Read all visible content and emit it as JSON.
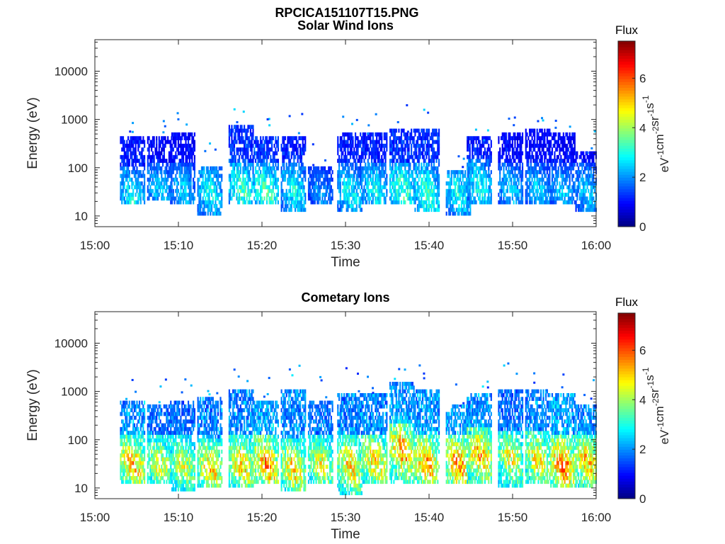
{
  "figure": {
    "title": "RPCICA151107T15.PNG"
  },
  "chart_data": [
    {
      "type": "heatmap",
      "title": "Solar Wind Ions",
      "xlabel": "Time",
      "ylabel": "Energy (eV)",
      "x_ticks": [
        "15:00",
        "15:10",
        "15:20",
        "15:30",
        "15:40",
        "15:50",
        "16:00"
      ],
      "xlim": [
        "15:00",
        "16:00"
      ],
      "y_scale": "log",
      "y_ticks": [
        "10",
        "100",
        "1000",
        "10000"
      ],
      "ylim": [
        6,
        45000
      ],
      "colorbar": {
        "title": "Flux",
        "label": "eV-1cm-2sr-1s-1",
        "ticks": [
          "0",
          "2",
          "4",
          "6"
        ],
        "range": [
          0,
          7.5
        ],
        "colormap": "jet"
      },
      "scans": [
        {
          "t": "15:04:30",
          "lo": 20,
          "hi": 300,
          "peak": 25,
          "vmax": 3.5
        },
        {
          "t": "15:07:45",
          "lo": 25,
          "hi": 300,
          "peak": 35,
          "vmax": 3.0
        },
        {
          "t": "15:10:30",
          "lo": 20,
          "hi": 400,
          "peak": 35,
          "vmax": 3.0
        },
        {
          "t": "15:13:45",
          "lo": 12,
          "hi": 80,
          "peak": 30,
          "vmax": 3.5
        },
        {
          "t": "15:17:30",
          "lo": 20,
          "hi": 600,
          "peak": 35,
          "vmax": 4.0
        },
        {
          "t": "15:20:30",
          "lo": 20,
          "hi": 300,
          "peak": 30,
          "vmax": 4.2
        },
        {
          "t": "15:23:45",
          "lo": 15,
          "hi": 300,
          "peak": 35,
          "vmax": 3.5
        },
        {
          "t": "15:27:00",
          "lo": 20,
          "hi": 80,
          "peak": 30,
          "vmax": 2.5
        },
        {
          "t": "15:30:30",
          "lo": 15,
          "hi": 400,
          "peak": 30,
          "vmax": 3.5
        },
        {
          "t": "15:33:30",
          "lo": 20,
          "hi": 400,
          "peak": 35,
          "vmax": 3.5
        },
        {
          "t": "15:36:45",
          "lo": 20,
          "hi": 450,
          "peak": 35,
          "vmax": 4.0
        },
        {
          "t": "15:39:45",
          "lo": 15,
          "hi": 500,
          "peak": 30,
          "vmax": 4.0
        },
        {
          "t": "15:43:30",
          "lo": 12,
          "hi": 60,
          "peak": 30,
          "vmax": 3.5
        },
        {
          "t": "15:46:00",
          "lo": 20,
          "hi": 300,
          "peak": 40,
          "vmax": 3.5
        },
        {
          "t": "15:49:45",
          "lo": 20,
          "hi": 400,
          "peak": 35,
          "vmax": 3.0
        },
        {
          "t": "15:53:00",
          "lo": 20,
          "hi": 500,
          "peak": 35,
          "vmax": 3.0
        },
        {
          "t": "15:56:00",
          "lo": 20,
          "hi": 400,
          "peak": 30,
          "vmax": 3.0
        },
        {
          "t": "15:59:00",
          "lo": 15,
          "hi": 150,
          "peak": 30,
          "vmax": 3.0
        }
      ]
    },
    {
      "type": "heatmap",
      "title": "Cometary Ions",
      "xlabel": "Time",
      "ylabel": "Energy (eV)",
      "x_ticks": [
        "15:00",
        "15:10",
        "15:20",
        "15:30",
        "15:40",
        "15:50",
        "16:00"
      ],
      "xlim": [
        "15:00",
        "16:00"
      ],
      "y_scale": "log",
      "y_ticks": [
        "10",
        "100",
        "1000",
        "10000"
      ],
      "ylim": [
        6,
        45000
      ],
      "colorbar": {
        "title": "Flux",
        "label": "eV-1cm-2sr-1s-1",
        "ticks": [
          "0",
          "2",
          "4",
          "6"
        ],
        "range": [
          0,
          7.5
        ],
        "colormap": "jet"
      },
      "scans": [
        {
          "t": "15:04:30",
          "lo": 15,
          "hi": 500,
          "peak": 30,
          "vmax": 6.2
        },
        {
          "t": "15:07:45",
          "lo": 15,
          "hi": 400,
          "peak": 30,
          "vmax": 5.5
        },
        {
          "t": "15:10:30",
          "lo": 10,
          "hi": 500,
          "peak": 30,
          "vmax": 5.3
        },
        {
          "t": "15:13:45",
          "lo": 12,
          "hi": 600,
          "peak": 25,
          "vmax": 6.0
        },
        {
          "t": "15:17:30",
          "lo": 12,
          "hi": 800,
          "peak": 30,
          "vmax": 6.0
        },
        {
          "t": "15:20:30",
          "lo": 15,
          "hi": 500,
          "peak": 30,
          "vmax": 6.5
        },
        {
          "t": "15:23:45",
          "lo": 10,
          "hi": 800,
          "peak": 25,
          "vmax": 6.0
        },
        {
          "t": "15:27:00",
          "lo": 15,
          "hi": 500,
          "peak": 30,
          "vmax": 5.5
        },
        {
          "t": "15:30:30",
          "lo": 8,
          "hi": 700,
          "peak": 30,
          "vmax": 6.0
        },
        {
          "t": "15:33:30",
          "lo": 15,
          "hi": 700,
          "peak": 35,
          "vmax": 6.0
        },
        {
          "t": "15:36:45",
          "lo": 15,
          "hi": 1200,
          "peak": 60,
          "vmax": 6.5
        },
        {
          "t": "15:39:45",
          "lo": 15,
          "hi": 800,
          "peak": 30,
          "vmax": 6.5
        },
        {
          "t": "15:43:30",
          "lo": 15,
          "hi": 400,
          "peak": 30,
          "vmax": 6.8
        },
        {
          "t": "15:46:00",
          "lo": 15,
          "hi": 700,
          "peak": 50,
          "vmax": 6.3
        },
        {
          "t": "15:49:45",
          "lo": 12,
          "hi": 800,
          "peak": 40,
          "vmax": 5.5
        },
        {
          "t": "15:53:00",
          "lo": 15,
          "hi": 800,
          "peak": 40,
          "vmax": 5.8
        },
        {
          "t": "15:56:00",
          "lo": 12,
          "hi": 700,
          "peak": 30,
          "vmax": 6.8
        },
        {
          "t": "15:59:00",
          "lo": 12,
          "hi": 400,
          "peak": 35,
          "vmax": 6.2
        }
      ]
    }
  ]
}
